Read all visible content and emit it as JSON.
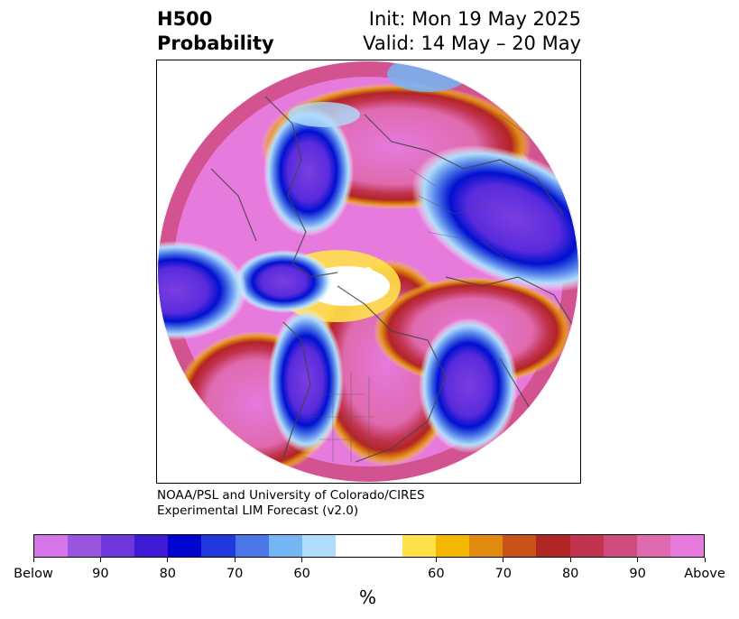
{
  "title": {
    "left_line1": "H500",
    "left_line2": "Probability",
    "right_line1": "Init: Mon 19 May 2025",
    "right_line2": "Valid: 14 May – 20 May"
  },
  "credits": {
    "line1": "NOAA/PSL and University of Colorado/CIRES",
    "line2": "Experimental LIM Forecast (v2.0)"
  },
  "colorbar": {
    "colors": [
      "#d675e8",
      "#9a55e0",
      "#6e37dc",
      "#3e19d6",
      "#0005cf",
      "#2039de",
      "#4a76e8",
      "#74b5f3",
      "#aedcfb",
      "#ffffff",
      "#ffffff",
      "#ffe14a",
      "#f5b800",
      "#e08a10",
      "#c85218",
      "#b12525",
      "#c23350",
      "#d14c7e",
      "#df6aae",
      "#e67add"
    ],
    "tick_labels": [
      "Below",
      "90",
      "80",
      "70",
      "60",
      "60",
      "70",
      "80",
      "90",
      "Above"
    ],
    "unit": "%"
  },
  "map": {
    "projection": "north-polar-stereographic",
    "below_color": "#7a3ee0",
    "above_color": "#e67add"
  }
}
